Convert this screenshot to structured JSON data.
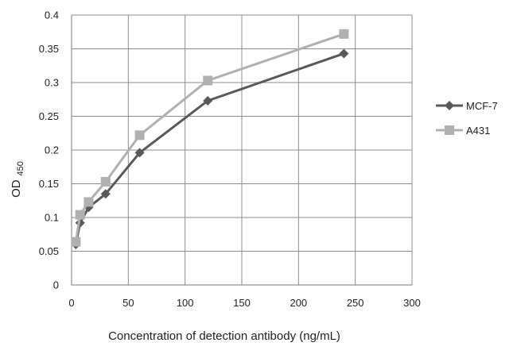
{
  "chart_data": {
    "type": "line",
    "xlabel": "Concentration of  detection antibody (ng/mL)",
    "ylabel": "OD",
    "ylabel_sub": "450",
    "xlim": [
      0,
      300
    ],
    "ylim": [
      0,
      0.4
    ],
    "x_ticks": [
      "0",
      "50",
      "100",
      "150",
      "200",
      "250",
      "300"
    ],
    "y_ticks": [
      "0",
      "0.05",
      "0.1",
      "0.15",
      "0.2",
      "0.25",
      "0.3",
      "0.35",
      "0.4"
    ],
    "grid": true,
    "legend_position": "right",
    "series": [
      {
        "name": "MCF-7",
        "color": "#595959",
        "marker": "diamond",
        "points": [
          {
            "x": 3.75,
            "y": 0.06
          },
          {
            "x": 7.5,
            "y": 0.092
          },
          {
            "x": 15,
            "y": 0.115
          },
          {
            "x": 30,
            "y": 0.135
          },
          {
            "x": 60,
            "y": 0.196
          },
          {
            "x": 120,
            "y": 0.273
          },
          {
            "x": 240,
            "y": 0.343
          }
        ]
      },
      {
        "name": "A431",
        "color": "#b0b0b0",
        "marker": "square",
        "points": [
          {
            "x": 3.75,
            "y": 0.064
          },
          {
            "x": 7.5,
            "y": 0.104
          },
          {
            "x": 15,
            "y": 0.123
          },
          {
            "x": 30,
            "y": 0.153
          },
          {
            "x": 60,
            "y": 0.222
          },
          {
            "x": 120,
            "y": 0.303
          },
          {
            "x": 240,
            "y": 0.372
          }
        ]
      }
    ]
  }
}
